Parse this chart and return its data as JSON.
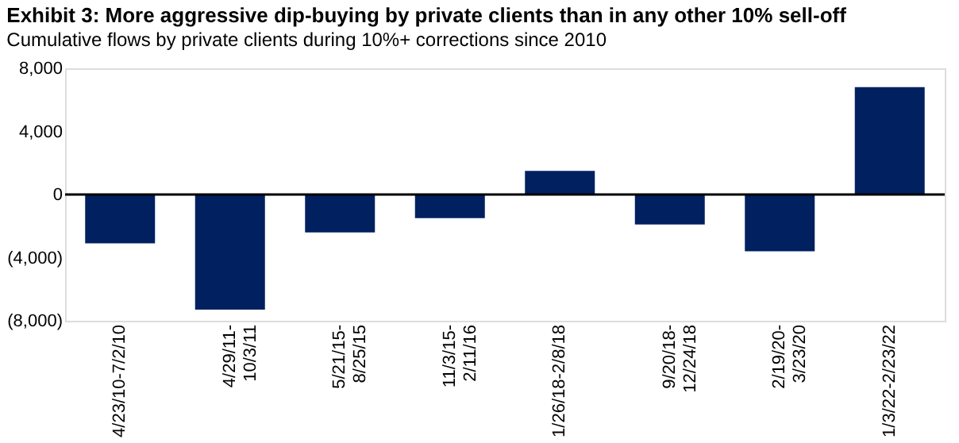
{
  "chart_data": {
    "type": "bar",
    "title": "Exhibit 3: More aggressive dip-buying by private clients than in any other 10% sell-off",
    "subtitle": "Cumulative flows by private clients during 10%+ corrections since 2010",
    "categories": [
      "4/23/10-7/2/10",
      "4/29/11-\n10/3/11",
      "5/21/15-\n8/25/15",
      "11/3/15-\n2/11/16",
      "1/26/18-2/8/18",
      "9/20/18-\n12/24/18",
      "2/19/20-\n3/23/20",
      "1/3/22-2/23/22"
    ],
    "values": [
      -3100,
      -7300,
      -2400,
      -1500,
      1500,
      -1900,
      -3600,
      6800
    ],
    "color": "#002060",
    "ylim": [
      -8000,
      8000
    ],
    "yticks": [
      {
        "value": -8000,
        "label": "(8,000)"
      },
      {
        "value": -4000,
        "label": "(4,000)"
      },
      0,
      {
        "value": 4000,
        "label": "4,000"
      },
      {
        "value": 8000,
        "label": "8,000"
      }
    ],
    "ref_lines": [
      {
        "axis": "y",
        "value": 0,
        "color": "#000000"
      }
    ],
    "grid": false
  }
}
